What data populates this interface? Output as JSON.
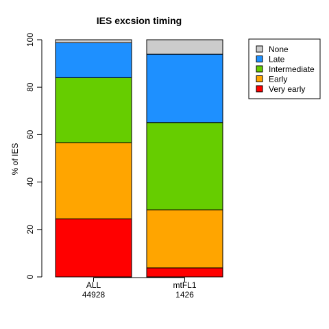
{
  "chart_data": {
    "type": "bar",
    "stacked": true,
    "title": "IES excsion timing",
    "ylabel": "% of IES",
    "xlabel": "",
    "ylim": [
      0,
      100
    ],
    "yticks": [
      0,
      20,
      40,
      60,
      80,
      100
    ],
    "categories": [
      "ALL",
      "mtFL1"
    ],
    "category_sublabels": [
      "44928",
      "1426"
    ],
    "series": [
      {
        "name": "Very early",
        "color": "#ff0000",
        "values": [
          24.5,
          3.8
        ]
      },
      {
        "name": "Early",
        "color": "#ffa500",
        "values": [
          32.1,
          24.5
        ]
      },
      {
        "name": "Intermediate",
        "color": "#66cd00",
        "values": [
          27.4,
          36.8
        ]
      },
      {
        "name": "Late",
        "color": "#1e90ff",
        "values": [
          14.7,
          28.8
        ]
      },
      {
        "name": "None",
        "color": "#cccccc",
        "values": [
          1.3,
          6.1
        ]
      }
    ],
    "legend_order": [
      "None",
      "Late",
      "Intermediate",
      "Early",
      "Very early"
    ],
    "legend_position": "top-right"
  }
}
